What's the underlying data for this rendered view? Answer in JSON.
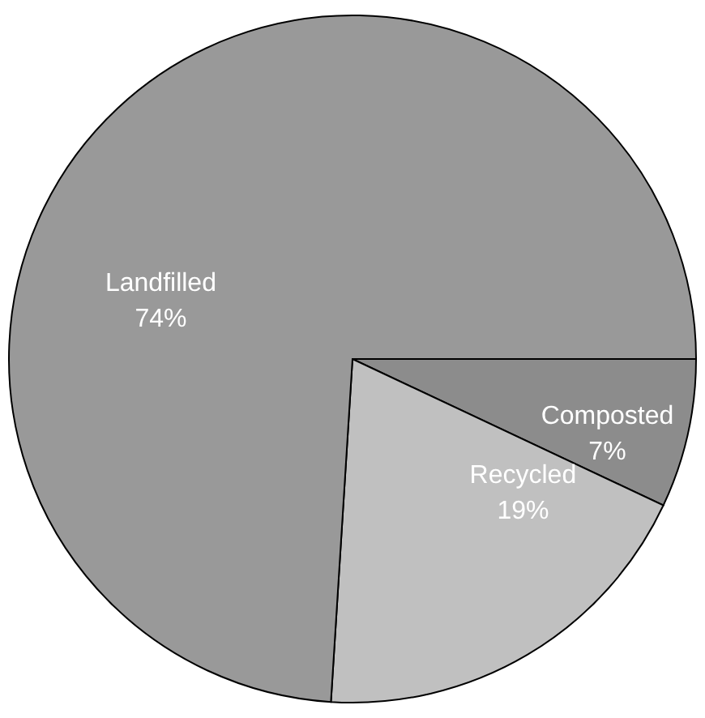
{
  "chart_data": {
    "type": "pie",
    "categories": [
      "Composted",
      "Recycled",
      "Landfilled"
    ],
    "values": [
      7,
      19,
      74
    ],
    "colors": [
      "#8c8c8c",
      "#c0c0c0",
      "#999999"
    ],
    "value_labels": [
      "7%",
      "19%",
      "74%"
    ]
  }
}
